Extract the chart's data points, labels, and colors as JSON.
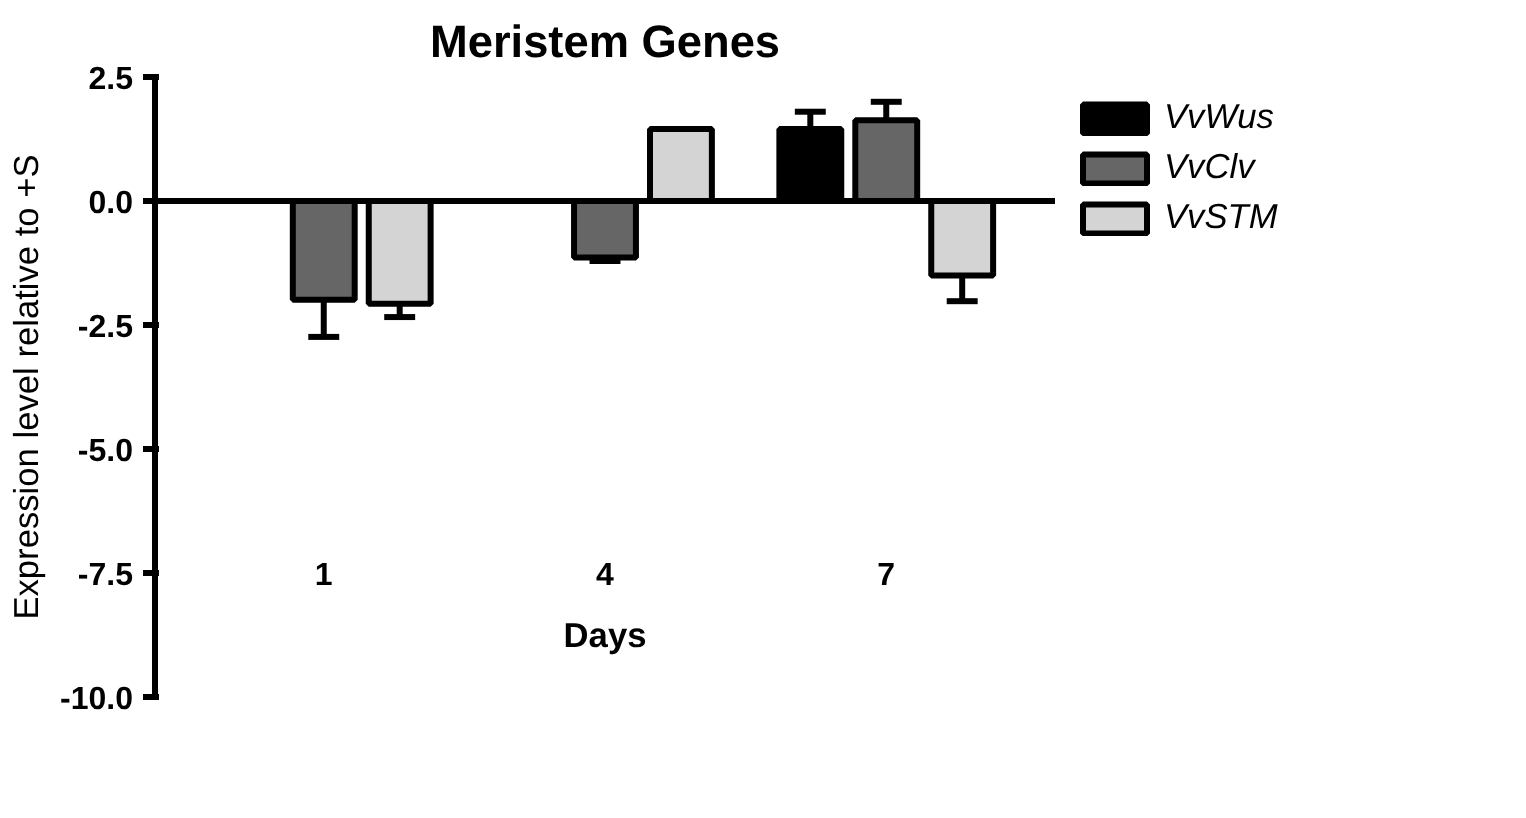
{
  "chart_data": {
    "type": "bar",
    "title": "Meristem Genes",
    "xlabel": "Days",
    "ylabel": "Expression level relative to +S",
    "categories": [
      "1",
      "4",
      "7"
    ],
    "series": [
      {
        "name": "VvWus",
        "color": "#000000",
        "values": [
          0,
          0,
          1.45
        ],
        "errors": [
          null,
          null,
          [
            1.45,
            1.8
          ]
        ]
      },
      {
        "name": "VvClv",
        "color": "#666666",
        "values": [
          -1.99,
          -1.14,
          1.63
        ],
        "errors": [
          [
            -2.74,
            -1.99
          ],
          [
            -1.21,
            -1.14
          ],
          [
            1.63,
            2.0
          ]
        ]
      },
      {
        "name": "VvSTM",
        "color": "#d4d4d4",
        "values": [
          -2.07,
          1.45,
          -1.5
        ],
        "errors": [
          [
            -2.34,
            -2.07
          ],
          null,
          [
            -2.02,
            -1.5
          ]
        ]
      }
    ],
    "ylim": [
      -10,
      2.5
    ],
    "yticks": [
      {
        "value": -10,
        "label": "-10.0"
      },
      {
        "value": -7.5,
        "label": "-7.5"
      },
      {
        "value": -5,
        "label": "-5.0"
      },
      {
        "value": -2.5,
        "label": "-2.5"
      },
      {
        "value": 0,
        "label": "0.0"
      },
      {
        "value": 2.5,
        "label": "2.5"
      }
    ],
    "legend": "right"
  }
}
